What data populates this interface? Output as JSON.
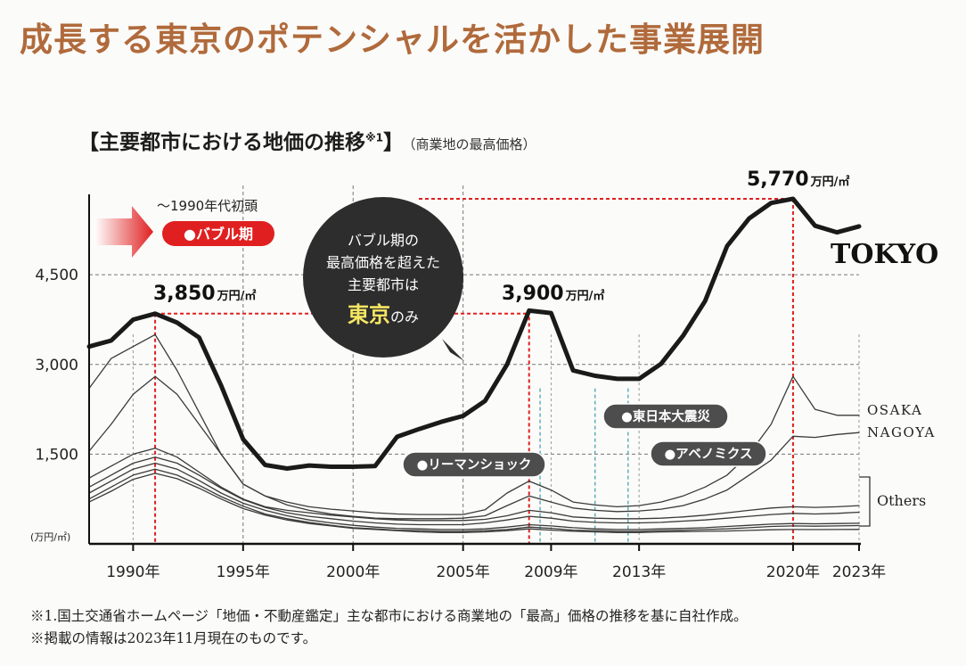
{
  "headline": "成長する東京のポテンシャルを活かした事業展開",
  "subtitle": {
    "open": "【",
    "main": "主要都市における地価の推移",
    "sup": "※1",
    "close": "】",
    "note": "（商業地の最高価格）"
  },
  "footnotes": [
    "※1.国土交通省ホームページ「地価・不動産鑑定」主な都市における商業地の「最高」価格の推移を基に自社作成。",
    "※掲載の情報は2023年11月現在のものです。"
  ],
  "colors": {
    "headline": "#b06a3b",
    "tokyo": "#1a1a1a",
    "other": "#3a3a3a",
    "red": "#e02020",
    "teal": "#4aa3b0",
    "bubble": "#2d2d2d",
    "pill": "#4d4d4d"
  },
  "chart_data": {
    "type": "line",
    "ylabel": "(万円/㎡)",
    "ylim": [
      0,
      5900
    ],
    "xlim": [
      1988,
      2023
    ],
    "y_ticks": [
      {
        "value": 1500,
        "label": "1,500"
      },
      {
        "value": 3000,
        "label": "3,000"
      },
      {
        "value": 4500,
        "label": "4,500"
      }
    ],
    "x_ticks": [
      {
        "year": 1990,
        "label": "1990年"
      },
      {
        "year": 1995,
        "label": "1995年"
      },
      {
        "year": 2000,
        "label": "2000年"
      },
      {
        "year": 2005,
        "label": "2005年"
      },
      {
        "year": 2009,
        "label": "2009年"
      },
      {
        "year": 2013,
        "label": "2013年"
      },
      {
        "year": 2020,
        "label": "2020年"
      },
      {
        "year": 2023,
        "label": "2023年"
      }
    ],
    "series": [
      {
        "name": "TOKYO",
        "label": "TOKYO",
        "primary": true,
        "x": [
          1988,
          1989,
          1990,
          1991,
          1992,
          1993,
          1994,
          1995,
          1996,
          1997,
          1998,
          1999,
          2000,
          2001,
          2002,
          2003,
          2004,
          2005,
          2006,
          2007,
          2008,
          2009,
          2010,
          2011,
          2012,
          2013,
          2014,
          2015,
          2016,
          2017,
          2018,
          2019,
          2020,
          2021,
          2022,
          2023
        ],
        "y": [
          3300,
          3400,
          3750,
          3850,
          3700,
          3450,
          2650,
          1750,
          1320,
          1260,
          1310,
          1290,
          1290,
          1300,
          1790,
          1920,
          2040,
          2140,
          2390,
          3000,
          3900,
          3860,
          2900,
          2810,
          2760,
          2760,
          3010,
          3480,
          4060,
          4980,
          5440,
          5700,
          5770,
          5320,
          5210,
          5310
        ]
      },
      {
        "name": "OSAKA",
        "label": "OSAKA",
        "x": [
          1988,
          1989,
          1990,
          1991,
          1992,
          1993,
          1994,
          1995,
          1996,
          1997,
          1998,
          1999,
          2000,
          2001,
          2002,
          2003,
          2004,
          2005,
          2006,
          2007,
          2008,
          2009,
          2010,
          2011,
          2012,
          2013,
          2014,
          2015,
          2016,
          2017,
          2018,
          2019,
          2020,
          2021,
          2022,
          2023
        ],
        "y": [
          2600,
          3100,
          3300,
          3500,
          2900,
          2200,
          1500,
          1000,
          800,
          700,
          620,
          580,
          550,
          520,
          500,
          490,
          490,
          490,
          570,
          850,
          1050,
          900,
          700,
          650,
          620,
          640,
          700,
          800,
          950,
          1150,
          1500,
          2000,
          2800,
          2250,
          2150,
          2150
        ]
      },
      {
        "name": "NAGOYA",
        "label": "NAGOYA",
        "x": [
          1988,
          1989,
          1990,
          1991,
          1992,
          1993,
          1994,
          1995,
          1996,
          1997,
          1998,
          1999,
          2000,
          2001,
          2002,
          2003,
          2004,
          2005,
          2006,
          2007,
          2008,
          2009,
          2010,
          2011,
          2012,
          2013,
          2014,
          2015,
          2016,
          2017,
          2018,
          2019,
          2020,
          2021,
          2022,
          2023
        ],
        "y": [
          1550,
          2000,
          2500,
          2800,
          2500,
          2000,
          1500,
          1000,
          800,
          650,
          560,
          500,
          460,
          430,
          420,
          420,
          420,
          430,
          470,
          640,
          800,
          700,
          600,
          560,
          540,
          550,
          580,
          640,
          750,
          900,
          1150,
          1400,
          1800,
          1780,
          1830,
          1860
        ]
      },
      {
        "name": "Others-1",
        "x": [
          1988,
          1989,
          1990,
          1991,
          1992,
          1993,
          1994,
          1995,
          1996,
          1997,
          1998,
          1999,
          2000,
          2001,
          2002,
          2003,
          2004,
          2005,
          2006,
          2007,
          2008,
          2009,
          2010,
          2011,
          2012,
          2013,
          2014,
          2015,
          2016,
          2017,
          2018,
          2019,
          2020,
          2021,
          2022,
          2023
        ],
        "y": [
          1100,
          1300,
          1500,
          1600,
          1450,
          1200,
          950,
          750,
          620,
          560,
          520,
          480,
          450,
          420,
          400,
          390,
          390,
          390,
          410,
          470,
          560,
          520,
          450,
          430,
          420,
          420,
          430,
          450,
          480,
          520,
          560,
          600,
          620,
          610,
          620,
          640
        ]
      },
      {
        "name": "Others-2",
        "x": [
          1988,
          1989,
          1990,
          1991,
          1992,
          1993,
          1994,
          1995,
          1996,
          1997,
          1998,
          1999,
          2000,
          2001,
          2002,
          2003,
          2004,
          2005,
          2006,
          2007,
          2008,
          2009,
          2010,
          2011,
          2012,
          2013,
          2014,
          2015,
          2016,
          2017,
          2018,
          2019,
          2020,
          2021,
          2022,
          2023
        ],
        "y": [
          950,
          1150,
          1350,
          1450,
          1350,
          1150,
          930,
          740,
          610,
          520,
          460,
          420,
          380,
          350,
          330,
          320,
          320,
          320,
          350,
          400,
          460,
          430,
          380,
          360,
          350,
          350,
          360,
          380,
          400,
          430,
          460,
          490,
          510,
          500,
          510,
          530
        ]
      },
      {
        "name": "Others-3",
        "x": [
          1988,
          1989,
          1990,
          1991,
          1992,
          1993,
          1994,
          1995,
          1996,
          1997,
          1998,
          1999,
          2000,
          2001,
          2002,
          2003,
          2004,
          2005,
          2006,
          2007,
          2008,
          2009,
          2010,
          2011,
          2012,
          2013,
          2014,
          2015,
          2016,
          2017,
          2018,
          2019,
          2020,
          2021,
          2022,
          2023
        ],
        "y": [
          850,
          1050,
          1250,
          1350,
          1250,
          1060,
          850,
          680,
          560,
          470,
          400,
          350,
          310,
          280,
          260,
          250,
          240,
          240,
          250,
          280,
          320,
          300,
          270,
          250,
          240,
          240,
          250,
          260,
          270,
          290,
          310,
          330,
          340,
          335,
          340,
          345
        ]
      },
      {
        "name": "Others-4",
        "x": [
          1988,
          1989,
          1990,
          1991,
          1992,
          1993,
          1994,
          1995,
          1996,
          1997,
          1998,
          1999,
          2000,
          2001,
          2002,
          2003,
          2004,
          2005,
          2006,
          2007,
          2008,
          2009,
          2010,
          2011,
          2012,
          2013,
          2014,
          2015,
          2016,
          2017,
          2018,
          2019,
          2020,
          2021,
          2022,
          2023
        ],
        "y": [
          750,
          950,
          1150,
          1250,
          1150,
          980,
          790,
          630,
          500,
          420,
          360,
          310,
          270,
          250,
          230,
          220,
          210,
          210,
          220,
          240,
          280,
          260,
          230,
          220,
          210,
          210,
          220,
          230,
          240,
          250,
          270,
          290,
          300,
          295,
          300,
          305
        ]
      },
      {
        "name": "Others-5",
        "x": [
          1988,
          1989,
          1990,
          1991,
          1992,
          1993,
          1994,
          1995,
          1996,
          1997,
          1998,
          1999,
          2000,
          2001,
          2002,
          2003,
          2004,
          2005,
          2006,
          2007,
          2008,
          2009,
          2010,
          2011,
          2012,
          2013,
          2014,
          2015,
          2016,
          2017,
          2018,
          2019,
          2020,
          2021,
          2022,
          2023
        ],
        "y": [
          700,
          880,
          1080,
          1180,
          1090,
          930,
          750,
          590,
          480,
          400,
          340,
          300,
          260,
          240,
          220,
          200,
          190,
          190,
          200,
          220,
          250,
          230,
          210,
          200,
          190,
          190,
          200,
          205,
          210,
          215,
          225,
          235,
          240,
          238,
          240,
          242
        ]
      }
    ],
    "others_label": "Others",
    "peak_labels": [
      {
        "year": 1991,
        "value": 3850,
        "number": "3,850",
        "unit": "万円/㎡"
      },
      {
        "year": 2008,
        "value": 3900,
        "number": "3,900",
        "unit": "万円/㎡"
      },
      {
        "year": 2020,
        "value": 5770,
        "number": "5,770",
        "unit": "万円/㎡"
      }
    ],
    "events": [
      {
        "year": 2008.5,
        "label": "●リーマンショック"
      },
      {
        "year": 2011,
        "label": "●東日本大震災"
      },
      {
        "year": 2012.5,
        "label": "●アベノミクス"
      }
    ],
    "bubble_period": {
      "era": "〜1990年代初頭",
      "label": "●バブル期"
    },
    "callout": {
      "line1": "バブル期の",
      "line2": "最高価格を超えた",
      "line3": "主要都市は",
      "highlight": "東京",
      "suffix": "のみ"
    }
  }
}
